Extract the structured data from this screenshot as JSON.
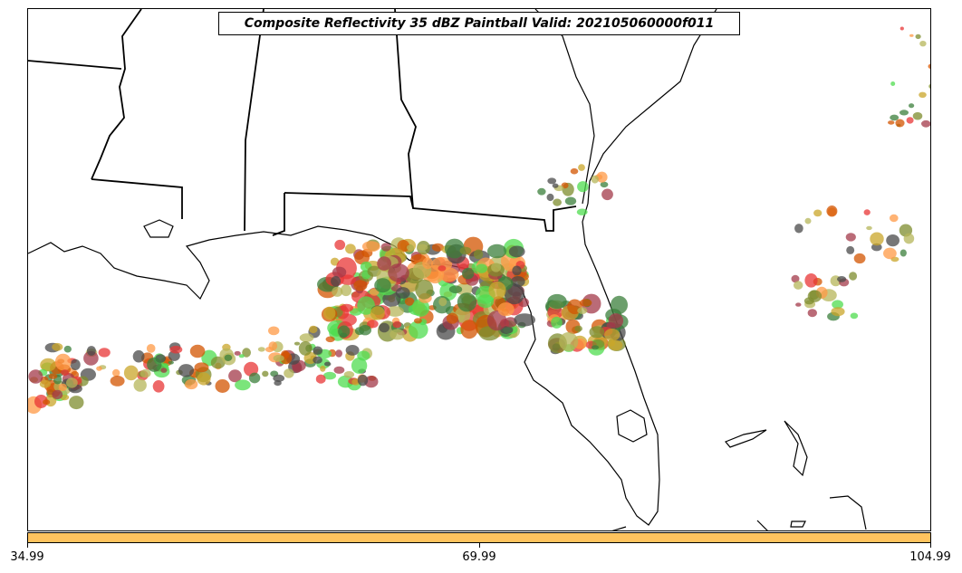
{
  "title": "Composite Reflectivity 35 dBZ Paintball Valid: 202105060000f011",
  "colorbar": {
    "color": "#ffc35e",
    "ticks": [
      "34.99",
      "69.99",
      "104.99"
    ]
  },
  "palette": [
    "#e83535",
    "#4fdc4f",
    "#ff9a45",
    "#a33a4a",
    "#7d8c2e",
    "#3b7f3b",
    "#4a4a4a",
    "#c9a62a",
    "#d35400",
    "#b5b55a"
  ]
}
